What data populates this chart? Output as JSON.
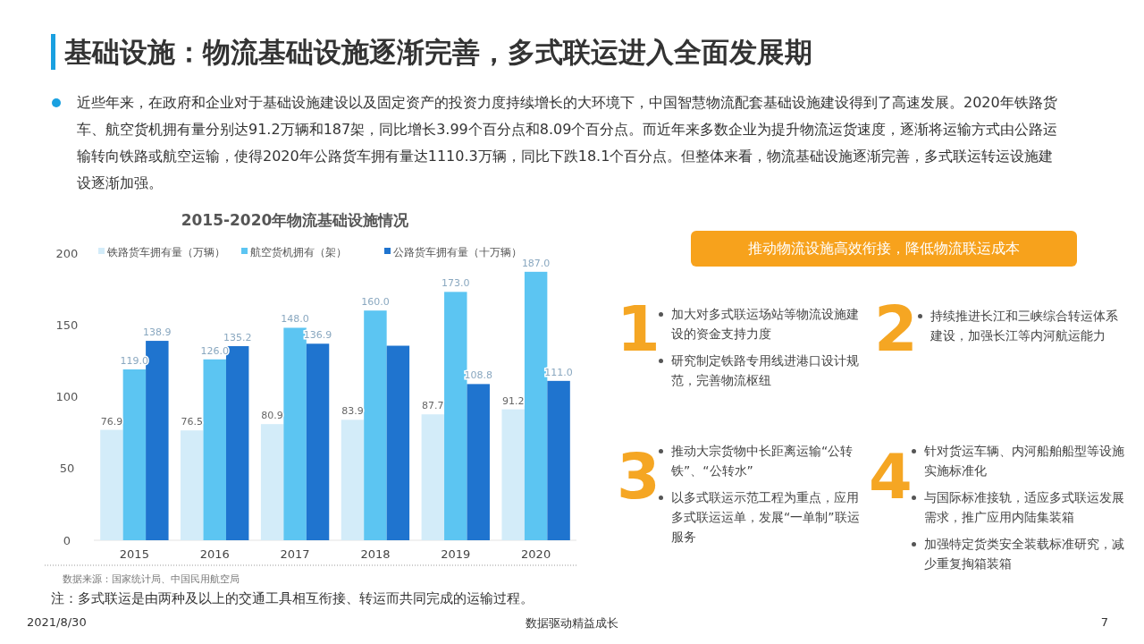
{
  "chart_data": {
    "type": "bar",
    "title": "2015-2020年物流基础设施情况",
    "categories": [
      "2015",
      "2016",
      "2017",
      "2018",
      "2019",
      "2020"
    ],
    "series": [
      {
        "name": "铁路货车拥有量（万辆）",
        "color": "#d3ecf9",
        "values": [
          76.9,
          76.5,
          80.9,
          83.9,
          87.7,
          91.2
        ],
        "value_labels": [
          "76.9",
          "76.5",
          "80.9",
          "83.9",
          "87.7",
          "91.2"
        ]
      },
      {
        "name": "航空货机拥有（架）",
        "color": "#5cc5f2",
        "values": [
          119.0,
          126.0,
          148.0,
          160.0,
          173.0,
          187.0
        ],
        "value_labels": [
          "119.0",
          "126.0",
          "148.0",
          "160.0",
          "173.0",
          "187.0"
        ]
      },
      {
        "name": "公路货车拥有量（十万辆）",
        "color": "#1f74cf",
        "values": [
          138.9,
          135.2,
          136.9,
          135.5,
          108.8,
          111.0
        ],
        "value_labels": [
          "138.9",
          "135.2",
          "136.9",
          null,
          "108.8",
          "111.0"
        ]
      }
    ],
    "ylim": [
      0,
      200
    ],
    "yticks": [
      0,
      50,
      100,
      150,
      200
    ],
    "grid": false,
    "legend": "top",
    "annotations": [
      "基础设施：物流基础设施逐渐完善，多式联运进入全面发展期",
      "近些年来，在政府和企业对于基础设施建设以及固定资产的投资力度持续增长的大环境下，中国智慧物流配套基础设施建设得到了高速发展。2020年铁路货车、航空货机拥有量分别达91.2万辆和187架，同比增长3.99个百分点和8.09个百分点。而近年来多数企业为提升物流运货速度，逐渐将运输方式由公路运输转向铁路或航空运输，使得2020年公路货车拥有量达1110.3万辆，同比下跌18.1个百分点。但整体来看，物流基础设施逐渐完善，多式联运转运设施建设逐渐加强。",
      "推动物流设施高效衔接，降低物流联运成本",
      "1",
      "加大对多式联运场站等物流设施建设的资金支持力度",
      "研究制定铁路专用线进港口设计规范，完善物流枢纽",
      "2",
      "持续推进长江和三峡综合转运体系建设，加强长江等内河航运能力",
      "3",
      "推动大宗货物中长距离运输“公转铁”、“公转水”",
      "以多式联运示范工程为重点，应用多式联运运单，发展“一单制”联运服务",
      "4",
      "针对货运车辆、内河船舶船型等设施实施标准化",
      "与国际标准接轨，适应多式联运发展需求，推广应用内陆集装箱",
      "加强特定货类安全装载标准研究，减少重复掏箱装箱",
      "数据来源：国家统计局、中国民用航空局",
      "注：多式联运是由两种及以上的交通工具相互衔接、转运而共同完成的运输过程。",
      "2021/8/30",
      "数据驱动精益成长",
      "7"
    ]
  }
}
